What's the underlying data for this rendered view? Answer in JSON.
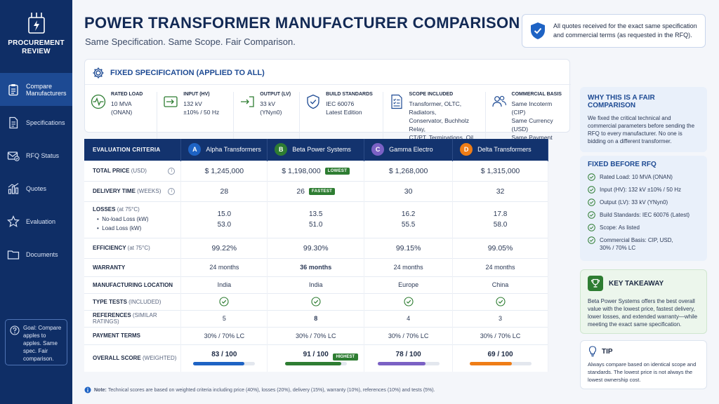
{
  "sidebar": {
    "brand": "PROCUREMENT REVIEW",
    "items": [
      {
        "label": "Compare Manufacturers",
        "icon": "clipboard-list-icon",
        "active": true
      },
      {
        "label": "Specifications",
        "icon": "document-icon",
        "active": false
      },
      {
        "label": "RFQ Status",
        "icon": "mail-check-icon",
        "active": false
      },
      {
        "label": "Quotes",
        "icon": "bar-chart-icon",
        "active": false
      },
      {
        "label": "Evaluation",
        "icon": "star-icon",
        "active": false
      },
      {
        "label": "Documents",
        "icon": "folder-icon",
        "active": false
      }
    ],
    "goal": "Goal: Compare apples to apples. Same spec. Fair comparison."
  },
  "header": {
    "title": "POWER TRANSFORMER MANUFACTURER COMPARISON",
    "subtitle": "Same Specification. Same Scope. Fair Comparison.",
    "quote_note": "All quotes received for the exact same specification and commercial terms (as requested in the RFQ)."
  },
  "spec": {
    "title": "FIXED SPECIFICATION (APPLIED TO ALL)",
    "items": [
      {
        "label": "RATED LOAD",
        "value": "10 MVA\n(ONAN)",
        "icon": "pulse-icon"
      },
      {
        "label": "INPUT (HV)",
        "value": "132 kV\n±10% / 50 Hz",
        "icon": "input-arrow-icon"
      },
      {
        "label": "OUTPUT (LV)",
        "value": "33 kV\n(YNyn0)",
        "icon": "output-arrow-icon"
      },
      {
        "label": "BUILD STANDARDS",
        "value": "IEC 60076\nLatest Edition",
        "icon": "shield-check-icon"
      },
      {
        "label": "SCOPE INCLUDED",
        "value": "Transformer, OLTC, Radiators,\nConservator, Buchholz Relay,\nCT/PT, Terminations, Oil, Tests",
        "icon": "checklist-icon"
      },
      {
        "label": "COMMERCIAL BASIS",
        "value": "Same Incoterm (CIP)\nSame Currency (USD)\nSame Payment Terms",
        "icon": "users-icon"
      }
    ]
  },
  "table": {
    "criteria_header": "EVALUATION CRITERIA",
    "manufacturers": [
      {
        "letter": "A",
        "name": "Alpha Transformers",
        "color": "#1e63c4"
      },
      {
        "letter": "B",
        "name": "Beta Power Systems",
        "color": "#2e7d32"
      },
      {
        "letter": "C",
        "name": "Gamma Electro",
        "color": "#7b61c4"
      },
      {
        "letter": "D",
        "name": "Delta Transformers",
        "color": "#ef7d16"
      }
    ],
    "rows": {
      "total_price": {
        "label": "TOTAL PRICE",
        "unit": "(USD)",
        "values": [
          "$ 1,245,000",
          "$ 1,198,000",
          "$ 1,268,000",
          "$ 1,315,000"
        ],
        "tag": "LOWEST"
      },
      "delivery": {
        "label": "DELIVERY TIME",
        "unit": "(WEEKS)",
        "values": [
          "28",
          "26",
          "30",
          "32"
        ],
        "tag": "FASTEST"
      },
      "losses": {
        "label": "LOSSES",
        "unit": "(at 75°C)",
        "sub1": "No-load Loss (kW)",
        "sub2": "Load Loss (kW)",
        "noload": [
          "15.0",
          "13.5",
          "16.2",
          "17.8"
        ],
        "load": [
          "53.0",
          "51.0",
          "55.5",
          "58.0"
        ]
      },
      "efficiency": {
        "label": "EFFICIENCY",
        "unit": "(at 75°C)",
        "values": [
          "99.22%",
          "99.30%",
          "99.15%",
          "99.05%"
        ]
      },
      "warranty": {
        "label": "WARRANTY",
        "values": [
          "24 months",
          "36 months",
          "24 months",
          "24 months"
        ]
      },
      "location": {
        "label": "MANUFACTURING LOCATION",
        "values": [
          "India",
          "India",
          "Europe",
          "China"
        ]
      },
      "type_tests": {
        "label": "TYPE TESTS",
        "unit": "(INCLUDED)"
      },
      "references": {
        "label": "REFERENCES",
        "unit": "(SIMILAR RATINGS)",
        "values": [
          "5",
          "8",
          "4",
          "3"
        ]
      },
      "payment": {
        "label": "PAYMENT TERMS",
        "values": [
          "30% / 70% LC",
          "30% / 70% LC",
          "30% / 70% LC",
          "30% / 70% LC"
        ]
      },
      "score": {
        "label": "OVERALL SCORE",
        "unit": "(WEIGHTED)",
        "values": [
          "83 / 100",
          "91 / 100",
          "78 / 100",
          "69 / 100"
        ],
        "fractions": [
          0.83,
          0.91,
          0.78,
          0.69
        ],
        "tag": "HIGHEST"
      }
    }
  },
  "note": {
    "bold": "Note:",
    "text": "Technical scores are based on weighted criteria including price (40%), losses (20%), delivery (15%), warranty (10%), references (10%) and tests (5%)."
  },
  "fair": {
    "title": "WHY THIS IS A FAIR COMPARISON",
    "text": "We fixed the critical technical and commercial parameters before sending the RFQ to every manufacturer. No one is bidding on a different transformer."
  },
  "fixed_before": {
    "title": "FIXED BEFORE RFQ",
    "items": [
      "Rated Load: 10 MVA (ONAN)",
      "Input (HV): 132 kV ±10% / 50 Hz",
      "Output (LV): 33 kV (YNyn0)",
      "Build Standards: IEC 60076 (Latest)",
      "Scope: As listed",
      "Commercial Basis: CIP, USD,\n30% / 70% LC"
    ]
  },
  "takeaway": {
    "title": "KEY TAKEAWAY",
    "text": "Beta Power Systems offers the best overall value with the lowest price, fastest delivery, lower losses, and extended warranty—while meeting the exact same specification."
  },
  "tip": {
    "title": "TIP",
    "text": "Always compare based on identical scope and standards. The lowest price is not always the lowest ownership cost."
  },
  "colors": {
    "sidebar": "#0f2e66",
    "accent": "#1d4a93",
    "good": "#2e7d32",
    "bad": "#d32f2f"
  }
}
